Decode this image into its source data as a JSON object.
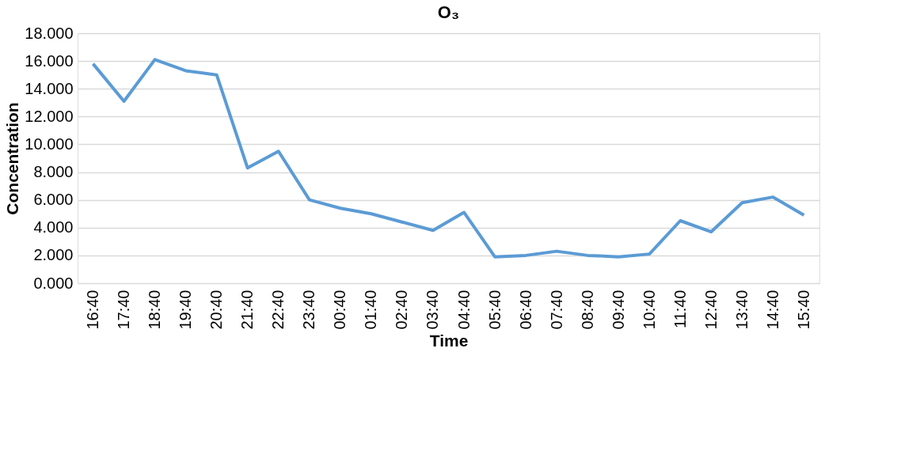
{
  "chart_data": {
    "type": "line",
    "title": "O₃",
    "xlabel": "Time",
    "ylabel": "Concentration",
    "categories": [
      "16:40",
      "17:40",
      "18:40",
      "19:40",
      "20:40",
      "21:40",
      "22:40",
      "23:40",
      "00:40",
      "01:40",
      "02:40",
      "03:40",
      "04:40",
      "05:40",
      "06:40",
      "07:40",
      "08:40",
      "09:40",
      "10:40",
      "11:40",
      "12:40",
      "13:40",
      "14:40",
      "15:40"
    ],
    "series": [
      {
        "color": "#5b9bd5",
        "values": [
          15.8,
          13.1,
          16.1,
          15.3,
          15.0,
          8.3,
          9.5,
          6.0,
          5.4,
          5.0,
          4.4,
          3.8,
          5.1,
          1.9,
          2.0,
          2.3,
          2.0,
          1.9,
          2.1,
          4.5,
          3.7,
          5.8,
          6.2,
          4.9
        ]
      }
    ],
    "ylim": [
      0,
      18
    ],
    "yticks": [
      {
        "value": 0,
        "label": "0.000"
      },
      {
        "value": 2,
        "label": "2.000"
      },
      {
        "value": 4,
        "label": "4.000"
      },
      {
        "value": 6,
        "label": "6.000"
      },
      {
        "value": 8,
        "label": "8.000"
      },
      {
        "value": 10,
        "label": "10.000"
      },
      {
        "value": 12,
        "label": "12.000"
      },
      {
        "value": 14,
        "label": "14.000"
      },
      {
        "value": 16,
        "label": "16.000"
      },
      {
        "value": 18,
        "label": "18.000"
      }
    ],
    "grid": "y",
    "legend": false,
    "marker": "none",
    "line_style": "solid"
  }
}
